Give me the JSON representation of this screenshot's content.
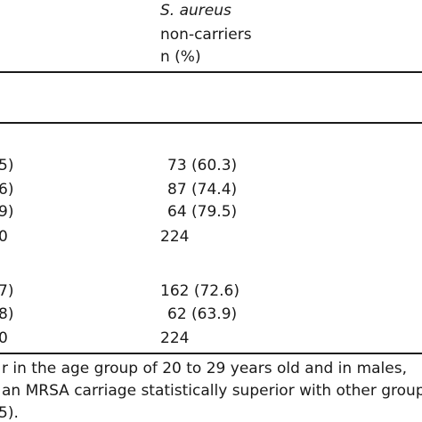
{
  "header": {
    "species": "S. aureus",
    "group": "non-carriers",
    "unit": "n (%)"
  },
  "left_fragments": [
    "5)",
    "6)",
    "9)",
    "0",
    "7)",
    "8)",
    "0"
  ],
  "rows": [
    "73 (60.3)",
    "87 (74.4)",
    "64 (79.5)",
    "224",
    "162 (72.6)",
    "62 (63.9)",
    "224"
  ],
  "footnote": {
    "line1": "r in the age group of 20 to 29 years old and in males,",
    "line2": "an MRSA carriage statistically superior with other group",
    "line3": "5)."
  }
}
